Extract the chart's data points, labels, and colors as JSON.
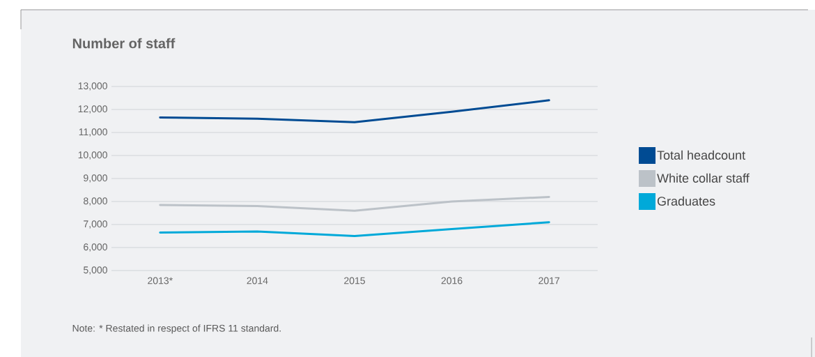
{
  "chart_data": {
    "type": "line",
    "title": "Number of staff",
    "categories": [
      "2013*",
      "2014",
      "2015",
      "2016",
      "2017"
    ],
    "series": [
      {
        "name": "Total headcount",
        "color": "#004b93",
        "values": [
          11650,
          11600,
          11450,
          11900,
          12400
        ]
      },
      {
        "name": "White collar staff",
        "color": "#bcc2c8",
        "values": [
          7850,
          7800,
          7600,
          8000,
          8200
        ]
      },
      {
        "name": "Graduates",
        "color": "#00a9d9",
        "values": [
          6650,
          6700,
          6500,
          6800,
          7100
        ]
      }
    ],
    "ylim": [
      5000,
      13000
    ],
    "yticks": [
      {
        "value": 5000,
        "label": "5,000"
      },
      {
        "value": 6000,
        "label": "6,000"
      },
      {
        "value": 7000,
        "label": "7,000"
      },
      {
        "value": 8000,
        "label": "8,000"
      },
      {
        "value": 9000,
        "label": "9,000"
      },
      {
        "value": 10000,
        "label": "10,000"
      },
      {
        "value": 11000,
        "label": "11,000"
      },
      {
        "value": 12000,
        "label": "12,000"
      },
      {
        "value": 13000,
        "label": "13,000"
      }
    ],
    "grid": "y",
    "legend": "right",
    "marker": "none",
    "line_style": "solid",
    "annotations": [
      "Note: * Restated in respect of IFRS 11 standard."
    ]
  }
}
